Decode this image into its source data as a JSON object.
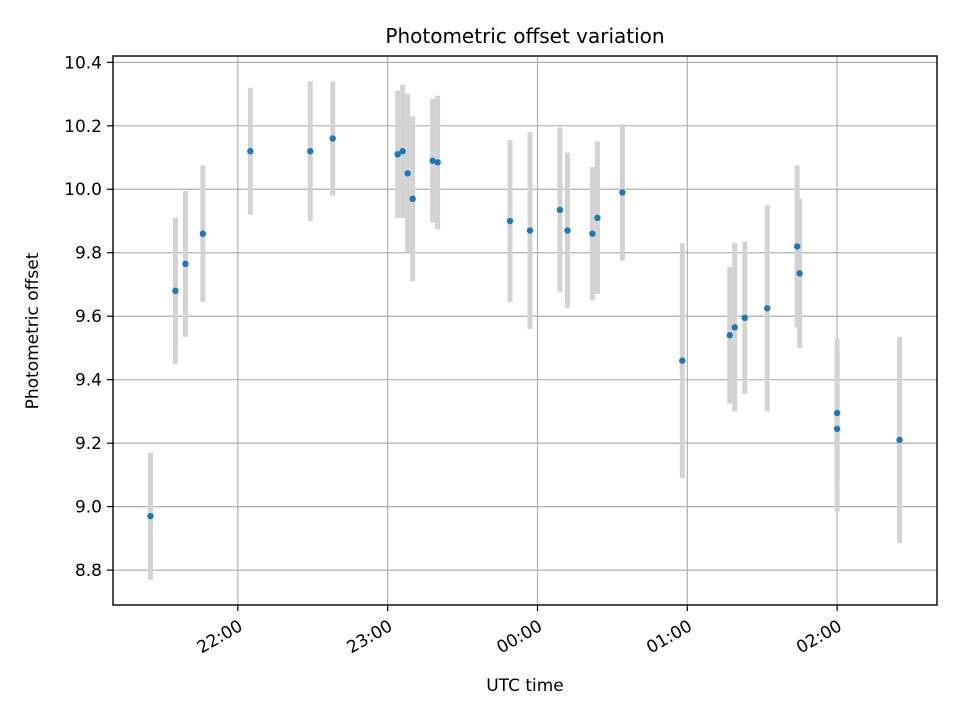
{
  "chart_data": {
    "type": "scatter",
    "title": "Photometric offset variation",
    "xlabel": "UTC time",
    "ylabel": "Photometric offset",
    "xlim": [
      "21:10",
      "02:40"
    ],
    "ylim": [
      8.69,
      10.42
    ],
    "grid": true,
    "x_ticks": [
      "22:00",
      "23:00",
      "00:00",
      "01:00",
      "02:00"
    ],
    "y_ticks": [
      "8.8",
      "9.0",
      "9.2",
      "9.4",
      "9.6",
      "9.8",
      "10.0",
      "10.2",
      "10.4"
    ],
    "colors": {
      "point": "#1f77b4",
      "error_bar": "#d3d3d3",
      "grid": "#b0b0b0"
    },
    "points": [
      {
        "x": "21:25",
        "y": 8.97,
        "err": 0.2
      },
      {
        "x": "21:35",
        "y": 9.68,
        "err": 0.23
      },
      {
        "x": "21:39",
        "y": 9.765,
        "err": 0.23
      },
      {
        "x": "21:46",
        "y": 9.86,
        "err": 0.215
      },
      {
        "x": "22:05",
        "y": 10.12,
        "err": 0.2
      },
      {
        "x": "22:29",
        "y": 10.12,
        "err": 0.22
      },
      {
        "x": "22:38",
        "y": 10.16,
        "err": 0.18
      },
      {
        "x": "23:04",
        "y": 10.11,
        "err": 0.2
      },
      {
        "x": "23:06",
        "y": 10.12,
        "err": 0.21
      },
      {
        "x": "23:08",
        "y": 10.05,
        "err": 0.25
      },
      {
        "x": "23:10",
        "y": 9.97,
        "err": 0.26
      },
      {
        "x": "23:18",
        "y": 10.09,
        "err": 0.195
      },
      {
        "x": "23:20",
        "y": 10.085,
        "err": 0.21
      },
      {
        "x": "23:49",
        "y": 9.9,
        "err": 0.255
      },
      {
        "x": "23:57",
        "y": 9.87,
        "err": 0.31
      },
      {
        "x": "00:09",
        "y": 9.935,
        "err": 0.26
      },
      {
        "x": "00:12",
        "y": 9.87,
        "err": 0.245
      },
      {
        "x": "00:22",
        "y": 9.86,
        "err": 0.21
      },
      {
        "x": "00:24",
        "y": 9.91,
        "err": 0.24
      },
      {
        "x": "00:34",
        "y": 9.99,
        "err": 0.215
      },
      {
        "x": "00:58",
        "y": 9.46,
        "err": 0.37
      },
      {
        "x": "01:17",
        "y": 9.54,
        "err": 0.215
      },
      {
        "x": "01:19",
        "y": 9.565,
        "err": 0.265
      },
      {
        "x": "01:23",
        "y": 9.595,
        "err": 0.24
      },
      {
        "x": "01:32",
        "y": 9.625,
        "err": 0.325
      },
      {
        "x": "01:44",
        "y": 9.82,
        "err": 0.255
      },
      {
        "x": "01:45",
        "y": 9.735,
        "err": 0.235
      },
      {
        "x": "02:00",
        "y": 9.295,
        "err": 0.235
      },
      {
        "x": "02:00",
        "y": 9.245,
        "err": 0.26
      },
      {
        "x": "02:25",
        "y": 9.21,
        "err": 0.325
      }
    ]
  }
}
